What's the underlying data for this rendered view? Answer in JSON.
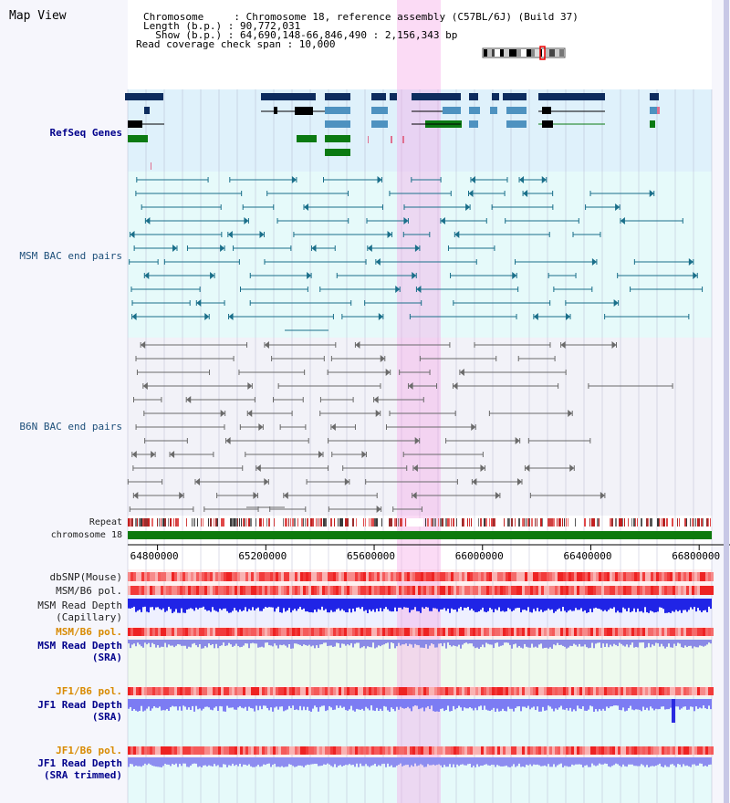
{
  "header": {
    "title": "Map View",
    "chromosome_line": "Chromosome     : Chromosome 18, reference assembly (C57BL/6J) (Build 37)",
    "length_line": "Length (b.p.) : 90,772,031",
    "show_line": "  Show (b.p.) : 64,690,148-66,846,490 : 2,156,343 bp",
    "coverage_line": "Read coverage check span : 10,000"
  },
  "tracks": {
    "refseq": "RefSeq Genes",
    "msm_bac": "MSM BAC end pairs",
    "b6n_bac": "B6N BAC end pairs",
    "repeat": "Repeat",
    "chromosome": "chromosome 18",
    "dbsnp": "dbSNP(Mouse)",
    "msm_b6_pol_1": "MSM/B6 pol.",
    "msm_read_depth_cap_1": "MSM Read Depth",
    "msm_read_depth_cap_2": "(Capillary)",
    "msm_b6_pol_2": "MSM/B6 pol.",
    "msm_read_depth_sra_1": "MSM Read Depth",
    "msm_read_depth_sra_2": "(SRA)",
    "jf1_b6_pol_1": "JF1/B6 pol.",
    "jf1_read_depth_1": "JF1 Read Depth",
    "jf1_read_depth_2": "(SRA)",
    "jf1_b6_pol_2": "JF1/B6 pol.",
    "jf1_trim_1": "JF1 Read Depth",
    "jf1_trim_2": "(SRA trimmed)"
  },
  "axis": {
    "ticks": [
      {
        "label": "64800000",
        "value": 64800000
      },
      {
        "label": "65200000",
        "value": 65200000
      },
      {
        "label": "65600000",
        "value": 65600000
      },
      {
        "label": "66000000",
        "value": 66000000
      },
      {
        "label": "66400000",
        "value": 66400000
      },
      {
        "label": "66800000",
        "value": 66800000
      }
    ],
    "range": [
      64690148,
      66846490
    ]
  },
  "colors": {
    "highlight": "#f7d6f0",
    "refseq_bg": "#dff1fb",
    "msm_bg": "#e6fafa",
    "b6n_bg": "#f2f2f8",
    "gene_navy": "#0d2c5e",
    "gene_blue": "#4e92c0",
    "gene_green": "#0b7a12",
    "msm_line": "#1a6f8a",
    "b6n_line": "#6a6a6a",
    "chrom": "#0d7a0d",
    "depth": "#2024e6",
    "depth_light": "#7c7cf3"
  }
}
